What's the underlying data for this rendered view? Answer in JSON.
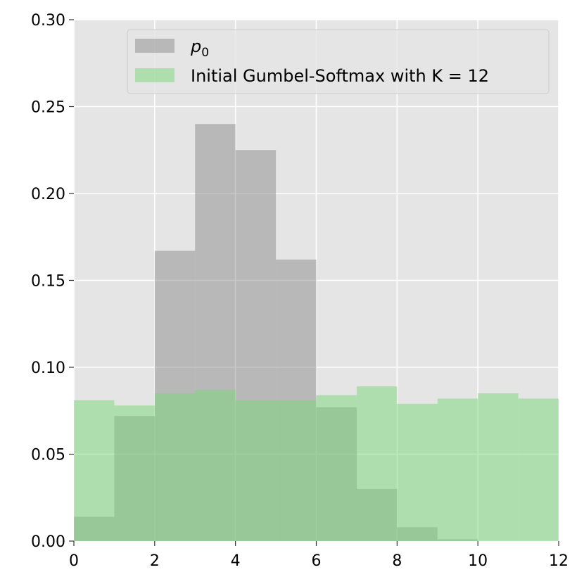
{
  "chart_data": {
    "type": "bar",
    "grid": true,
    "legend_position": "top-right",
    "xlim": [
      0,
      12
    ],
    "ylim": [
      0,
      0.3
    ],
    "x_ticks": [
      "0",
      "2",
      "4",
      "6",
      "8",
      "10",
      "12"
    ],
    "y_ticks": [
      "0.00",
      "0.05",
      "0.10",
      "0.15",
      "0.20",
      "0.25",
      "0.30"
    ],
    "bin_edges": [
      0,
      1,
      2,
      3,
      4,
      5,
      6,
      7,
      8,
      9,
      10,
      11,
      12
    ],
    "series": [
      {
        "name": "p",
        "name_subscript": "0",
        "color": "#8c8c8c",
        "opacity": 0.5,
        "values": [
          0.014,
          0.072,
          0.167,
          0.24,
          0.225,
          0.162,
          0.077,
          0.03,
          0.008,
          0.001,
          0.0,
          0.0
        ]
      },
      {
        "name": "Initial Gumbel-Softmax with K = 12",
        "color": "#77d877",
        "opacity": 0.5,
        "values": [
          0.081,
          0.078,
          0.085,
          0.087,
          0.081,
          0.081,
          0.084,
          0.089,
          0.079,
          0.082,
          0.085,
          0.082
        ]
      }
    ],
    "colors": {
      "plot_background": "#e5e5e5",
      "grid": "#ffffff",
      "legend_background": "#e5e5e5",
      "legend_border": "#cccccc"
    }
  }
}
